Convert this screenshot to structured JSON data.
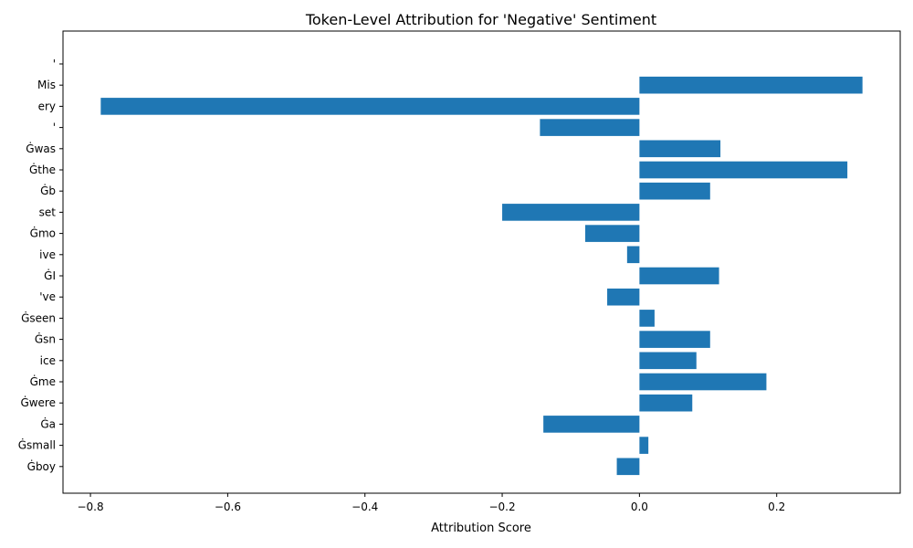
{
  "chart_data": {
    "type": "bar",
    "orientation": "horizontal",
    "title": "Token-Level Attribution for 'Negative' Sentiment",
    "xlabel": "Attribution Score",
    "ylabel": "",
    "xlim": [
      -0.84,
      0.38
    ],
    "xticks": [
      -0.8,
      -0.6,
      -0.4,
      -0.2,
      0.0,
      0.2
    ],
    "xtick_labels": [
      "−0.8",
      "−0.6",
      "−0.4",
      "−0.2",
      "0.0",
      "0.2"
    ],
    "grid": false,
    "color": "#1f77b4",
    "categories": [
      "'",
      "Mis",
      "ery",
      "'",
      "Ġwas",
      "Ġthe",
      "Ġb",
      "set",
      "Ġmo",
      "ive",
      "ĠI",
      "'ve",
      "Ġseen",
      "Ġsn",
      "ice",
      "Ġme",
      "Ġwere",
      "Ġa",
      "Ġsmall",
      "Ġboy"
    ],
    "values": [
      0.0,
      0.325,
      -0.785,
      -0.145,
      0.118,
      0.303,
      0.103,
      -0.2,
      -0.079,
      -0.018,
      0.116,
      -0.047,
      0.022,
      0.103,
      0.083,
      0.185,
      0.077,
      -0.14,
      0.013,
      -0.033
    ]
  }
}
